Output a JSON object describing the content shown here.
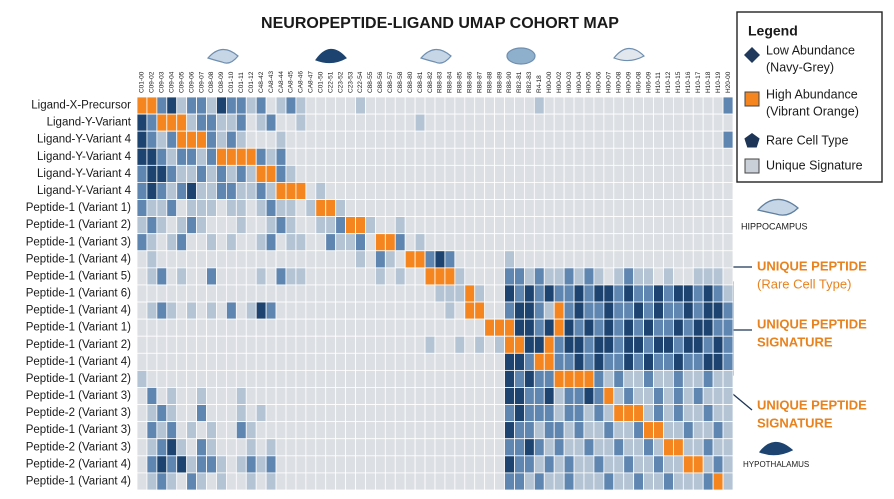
{
  "chart_data": {
    "type": "heatmap",
    "title": "NEUROPEPTIDE-LIGAND UMAP COHORT MAP",
    "rows": [
      "Ligand-X-Precursor",
      "Ligand-Y-Variant",
      "Ligand-Y-Variant 4",
      "Ligand-Y-Variant 4",
      "Ligand-Y-Variant 4",
      "Ligand-Y-Variant 4",
      "Peptide-1 (Variant 1)",
      "Peptide-1 (Variant 2)",
      "Peptide-1 (Variant 3)",
      "Peptide-1 (Variant 4)",
      "Peptide-1 (Variant 5)",
      "Peptide-1 (Variant 6)",
      "Peptide-1 (Variant 4)",
      "Peptide-1 (Variant 1)",
      "Peptide-1 (Variant 2)",
      "Peptide-1 (Variant 4)",
      "Peptide-1 (Variant 2)",
      "Peptide-1 (Variant 3)",
      "Peptide-2 (Variant 3)",
      "Peptide-1 (Variant 3)",
      "Peptide-2 (Variant 3)",
      "Peptide-2 (Variant 4)",
      "Peptide-1 (Variant 4)"
    ],
    "columns": [
      "C01-00",
      "C09-02",
      "C09-03",
      "C09-04",
      "C09-05",
      "C09-06",
      "C09-07",
      "C08-08",
      "C08-09",
      "C01-10",
      "C01-11",
      "C01-12",
      "C48-42",
      "CA8-43",
      "CA8-44",
      "CA8-45",
      "CA8-46",
      "CA8-47",
      "C01-50",
      "C22-51",
      "C23-52",
      "C23-53",
      "C22-54",
      "C88-55",
      "C88-56",
      "C88-57",
      "C88-58",
      "C88-80",
      "C88-81",
      "C88-82",
      "R88-83",
      "R88-84",
      "R88-85",
      "R88-86",
      "R88-87",
      "R88-88",
      "R88-89",
      "R88-90",
      "R82-81",
      "R82-83",
      "R4-18",
      "H00-00",
      "H00-02",
      "H00-03",
      "H00-04",
      "H00-05",
      "H00-06",
      "H00-07",
      "H00-08",
      "H00-09",
      "H06-08",
      "H06-09",
      "H10-11",
      "H10-12",
      "H10-15",
      "H10-16",
      "H10-17",
      "H10-18",
      "H10-19",
      "H20-00"
    ],
    "level_colors": [
      "#dcdfe3",
      "#b4c4d5",
      "#5f86b0",
      "#1d4470",
      "#f5861f"
    ],
    "matrix": [
      [
        4,
        4,
        2,
        3,
        1,
        2,
        2,
        1,
        3,
        2,
        2,
        1,
        2,
        0,
        1,
        2,
        1,
        0,
        0,
        0,
        0,
        0,
        1,
        0,
        0,
        0,
        0,
        0,
        0,
        0,
        0,
        0,
        0,
        0,
        0,
        0,
        0,
        0,
        0,
        0,
        1,
        0,
        0,
        0,
        0,
        0,
        0,
        0,
        0,
        0,
        0,
        0,
        0,
        0,
        0,
        0,
        0,
        0,
        0,
        2
      ],
      [
        3,
        2,
        4,
        4,
        4,
        1,
        2,
        2,
        1,
        1,
        2,
        0,
        1,
        2,
        0,
        0,
        1,
        0,
        0,
        0,
        0,
        0,
        0,
        0,
        0,
        0,
        0,
        0,
        1,
        0,
        0,
        0,
        0,
        0,
        0,
        0,
        0,
        0,
        0,
        0,
        0,
        0,
        0,
        0,
        0,
        0,
        0,
        0,
        0,
        0,
        0,
        0,
        0,
        0,
        0,
        0,
        0,
        0,
        0,
        0
      ],
      [
        3,
        2,
        1,
        2,
        4,
        4,
        4,
        2,
        1,
        2,
        1,
        0,
        0,
        0,
        1,
        0,
        0,
        0,
        0,
        0,
        0,
        0,
        0,
        0,
        0,
        0,
        0,
        0,
        0,
        0,
        0,
        0,
        0,
        0,
        0,
        0,
        0,
        0,
        0,
        0,
        0,
        0,
        0,
        0,
        0,
        0,
        0,
        0,
        0,
        0,
        0,
        0,
        0,
        0,
        0,
        0,
        0,
        0,
        0,
        2
      ],
      [
        3,
        3,
        2,
        1,
        2,
        2,
        1,
        2,
        4,
        4,
        4,
        4,
        2,
        1,
        2,
        0,
        0,
        0,
        0,
        0,
        0,
        0,
        0,
        0,
        0,
        0,
        0,
        0,
        0,
        0,
        0,
        0,
        0,
        0,
        0,
        0,
        0,
        0,
        0,
        0,
        0,
        0,
        0,
        0,
        0,
        0,
        0,
        0,
        0,
        0,
        0,
        0,
        0,
        0,
        0,
        0,
        0,
        0,
        0,
        0
      ],
      [
        2,
        3,
        3,
        2,
        1,
        1,
        2,
        1,
        2,
        1,
        2,
        1,
        4,
        4,
        2,
        1,
        0,
        0,
        0,
        0,
        0,
        0,
        0,
        0,
        0,
        0,
        0,
        0,
        0,
        0,
        0,
        0,
        0,
        0,
        0,
        0,
        0,
        0,
        0,
        0,
        0,
        0,
        0,
        0,
        0,
        0,
        0,
        0,
        0,
        0,
        0,
        0,
        0,
        0,
        0,
        0,
        0,
        0,
        0,
        0
      ],
      [
        2,
        3,
        2,
        1,
        2,
        3,
        1,
        1,
        2,
        2,
        1,
        1,
        2,
        1,
        4,
        4,
        4,
        0,
        1,
        0,
        0,
        0,
        0,
        0,
        0,
        0,
        0,
        0,
        0,
        0,
        0,
        0,
        0,
        0,
        0,
        0,
        0,
        0,
        0,
        0,
        0,
        0,
        0,
        0,
        0,
        0,
        0,
        0,
        0,
        0,
        0,
        0,
        0,
        0,
        0,
        0,
        0,
        0,
        0,
        0
      ],
      [
        2,
        1,
        1,
        2,
        0,
        1,
        1,
        1,
        0,
        1,
        1,
        0,
        1,
        2,
        1,
        1,
        0,
        1,
        4,
        4,
        1,
        0,
        0,
        0,
        0,
        0,
        0,
        0,
        0,
        0,
        0,
        0,
        0,
        0,
        0,
        0,
        0,
        0,
        0,
        0,
        0,
        0,
        0,
        0,
        0,
        0,
        0,
        0,
        0,
        0,
        0,
        0,
        0,
        0,
        0,
        0,
        0,
        0,
        0,
        0
      ],
      [
        1,
        2,
        1,
        0,
        1,
        2,
        1,
        0,
        0,
        0,
        1,
        0,
        0,
        1,
        2,
        1,
        0,
        0,
        1,
        1,
        2,
        4,
        4,
        1,
        0,
        0,
        1,
        0,
        0,
        0,
        0,
        0,
        0,
        0,
        0,
        0,
        0,
        0,
        0,
        0,
        0,
        0,
        0,
        0,
        0,
        0,
        0,
        0,
        0,
        0,
        0,
        0,
        0,
        0,
        0,
        0,
        0,
        0,
        0,
        0
      ],
      [
        2,
        1,
        0,
        1,
        2,
        0,
        0,
        1,
        0,
        1,
        0,
        0,
        1,
        2,
        0,
        1,
        1,
        0,
        0,
        2,
        1,
        1,
        2,
        0,
        4,
        4,
        2,
        0,
        1,
        0,
        0,
        0,
        0,
        0,
        0,
        0,
        0,
        0,
        0,
        0,
        0,
        0,
        0,
        0,
        0,
        0,
        0,
        0,
        0,
        0,
        0,
        0,
        0,
        0,
        0,
        0,
        0,
        0,
        0,
        0
      ],
      [
        0,
        1,
        0,
        0,
        0,
        0,
        0,
        0,
        0,
        0,
        0,
        0,
        0,
        0,
        0,
        0,
        0,
        0,
        0,
        0,
        0,
        0,
        1,
        0,
        2,
        1,
        0,
        4,
        4,
        2,
        3,
        2,
        0,
        0,
        0,
        0,
        0,
        1,
        0,
        0,
        0,
        0,
        0,
        0,
        0,
        0,
        0,
        0,
        0,
        0,
        0,
        0,
        0,
        0,
        0,
        0,
        0,
        0,
        0,
        0
      ],
      [
        0,
        1,
        2,
        0,
        1,
        0,
        0,
        2,
        0,
        0,
        0,
        0,
        1,
        0,
        2,
        1,
        1,
        0,
        0,
        0,
        0,
        0,
        0,
        0,
        1,
        0,
        1,
        0,
        0,
        4,
        4,
        4,
        1,
        0,
        0,
        0,
        0,
        2,
        2,
        1,
        2,
        1,
        1,
        2,
        1,
        2,
        1,
        0,
        1,
        2,
        1,
        1,
        0,
        1,
        0,
        0,
        1,
        1,
        1,
        0
      ],
      [
        0,
        0,
        0,
        0,
        0,
        0,
        0,
        0,
        0,
        0,
        0,
        0,
        0,
        0,
        0,
        0,
        0,
        0,
        0,
        0,
        0,
        0,
        0,
        0,
        0,
        0,
        0,
        0,
        0,
        0,
        1,
        1,
        1,
        4,
        1,
        0,
        0,
        3,
        2,
        3,
        2,
        3,
        2,
        2,
        3,
        2,
        3,
        3,
        2,
        3,
        2,
        2,
        3,
        2,
        3,
        3,
        2,
        3,
        2,
        1
      ],
      [
        0,
        1,
        2,
        1,
        0,
        1,
        0,
        1,
        0,
        2,
        0,
        1,
        3,
        2,
        0,
        0,
        0,
        0,
        0,
        0,
        0,
        0,
        0,
        0,
        0,
        0,
        0,
        0,
        0,
        0,
        0,
        1,
        0,
        4,
        4,
        0,
        0,
        2,
        3,
        3,
        2,
        1,
        4,
        2,
        3,
        2,
        2,
        3,
        2,
        2,
        3,
        2,
        3,
        2,
        2,
        3,
        2,
        3,
        3,
        2
      ],
      [
        0,
        0,
        0,
        0,
        0,
        0,
        0,
        0,
        0,
        0,
        0,
        0,
        0,
        0,
        0,
        0,
        0,
        0,
        0,
        0,
        0,
        0,
        0,
        0,
        0,
        0,
        0,
        0,
        0,
        0,
        0,
        0,
        0,
        0,
        0,
        4,
        4,
        4,
        3,
        3,
        2,
        3,
        4,
        3,
        2,
        3,
        2,
        3,
        2,
        3,
        2,
        3,
        2,
        2,
        3,
        2,
        3,
        3,
        2,
        2
      ],
      [
        0,
        0,
        0,
        0,
        0,
        0,
        0,
        0,
        0,
        0,
        0,
        0,
        0,
        0,
        0,
        0,
        0,
        0,
        0,
        0,
        0,
        0,
        0,
        0,
        0,
        0,
        0,
        0,
        0,
        1,
        0,
        0,
        1,
        0,
        1,
        0,
        1,
        4,
        4,
        3,
        3,
        4,
        2,
        3,
        3,
        2,
        3,
        3,
        2,
        3,
        3,
        2,
        3,
        3,
        2,
        3,
        3,
        2,
        3,
        2
      ],
      [
        0,
        0,
        0,
        0,
        0,
        0,
        0,
        0,
        0,
        0,
        0,
        0,
        0,
        0,
        0,
        0,
        0,
        0,
        0,
        0,
        0,
        0,
        0,
        0,
        0,
        0,
        0,
        0,
        0,
        0,
        0,
        0,
        0,
        0,
        0,
        0,
        0,
        3,
        3,
        2,
        4,
        4,
        2,
        2,
        3,
        2,
        3,
        2,
        2,
        3,
        2,
        3,
        2,
        2,
        3,
        2,
        2,
        3,
        3,
        2
      ],
      [
        1,
        0,
        0,
        0,
        0,
        0,
        0,
        0,
        0,
        0,
        0,
        0,
        0,
        0,
        0,
        0,
        0,
        0,
        0,
        0,
        0,
        0,
        0,
        0,
        0,
        0,
        0,
        0,
        0,
        0,
        0,
        0,
        0,
        0,
        0,
        0,
        0,
        3,
        2,
        3,
        2,
        2,
        4,
        4,
        4,
        4,
        2,
        1,
        2,
        1,
        1,
        2,
        1,
        1,
        2,
        1,
        1,
        2,
        1,
        1
      ],
      [
        0,
        2,
        0,
        1,
        0,
        0,
        1,
        0,
        0,
        0,
        1,
        0,
        0,
        0,
        0,
        0,
        0,
        0,
        0,
        0,
        0,
        0,
        0,
        0,
        0,
        0,
        0,
        0,
        0,
        0,
        0,
        0,
        0,
        0,
        0,
        0,
        0,
        3,
        3,
        2,
        2,
        3,
        1,
        2,
        2,
        3,
        2,
        4,
        1,
        2,
        1,
        1,
        2,
        1,
        2,
        1,
        2,
        1,
        1,
        1
      ],
      [
        0,
        1,
        2,
        1,
        0,
        0,
        2,
        0,
        0,
        0,
        1,
        0,
        1,
        0,
        0,
        0,
        0,
        0,
        0,
        0,
        0,
        0,
        0,
        0,
        0,
        0,
        0,
        0,
        0,
        0,
        0,
        0,
        0,
        0,
        0,
        0,
        0,
        2,
        3,
        2,
        2,
        2,
        1,
        2,
        2,
        1,
        2,
        1,
        4,
        4,
        4,
        1,
        2,
        1,
        2,
        1,
        1,
        2,
        1,
        1
      ],
      [
        0,
        2,
        1,
        2,
        0,
        1,
        0,
        1,
        0,
        0,
        2,
        1,
        0,
        0,
        0,
        0,
        0,
        0,
        0,
        0,
        0,
        0,
        0,
        0,
        0,
        0,
        0,
        0,
        0,
        0,
        0,
        0,
        0,
        0,
        0,
        0,
        0,
        3,
        2,
        2,
        1,
        2,
        2,
        1,
        2,
        1,
        1,
        2,
        1,
        1,
        2,
        4,
        4,
        1,
        1,
        2,
        1,
        1,
        2,
        1
      ],
      [
        0,
        1,
        2,
        3,
        1,
        0,
        2,
        1,
        0,
        0,
        0,
        1,
        0,
        1,
        0,
        0,
        0,
        0,
        0,
        0,
        0,
        0,
        0,
        0,
        0,
        0,
        0,
        0,
        0,
        0,
        0,
        0,
        0,
        0,
        0,
        0,
        0,
        2,
        2,
        3,
        2,
        1,
        2,
        1,
        1,
        2,
        1,
        1,
        2,
        1,
        1,
        2,
        1,
        4,
        4,
        1,
        1,
        2,
        1,
        1
      ],
      [
        0,
        2,
        3,
        2,
        3,
        1,
        2,
        2,
        1,
        0,
        1,
        2,
        1,
        2,
        0,
        0,
        0,
        0,
        0,
        0,
        0,
        0,
        0,
        0,
        0,
        0,
        0,
        0,
        0,
        0,
        0,
        0,
        0,
        0,
        0,
        0,
        0,
        3,
        2,
        2,
        1,
        2,
        1,
        2,
        1,
        1,
        2,
        1,
        1,
        2,
        1,
        1,
        2,
        1,
        1,
        4,
        4,
        1,
        2,
        1
      ],
      [
        0,
        1,
        2,
        1,
        0,
        2,
        1,
        0,
        1,
        0,
        0,
        1,
        0,
        1,
        0,
        0,
        0,
        0,
        0,
        0,
        0,
        0,
        0,
        0,
        0,
        0,
        0,
        0,
        0,
        0,
        0,
        0,
        0,
        0,
        0,
        0,
        0,
        2,
        2,
        1,
        2,
        1,
        1,
        2,
        1,
        1,
        1,
        2,
        1,
        1,
        2,
        1,
        1,
        2,
        1,
        1,
        1,
        2,
        4,
        1
      ]
    ],
    "legend": {
      "title": "Legend",
      "items": [
        {
          "label": "Low Abundance",
          "note": "(Navy-Grey)",
          "shape": "diamond",
          "color": "#1f3a5c"
        },
        {
          "label": "High Abundance",
          "note": "(Vibrant Orange)",
          "shape": "square",
          "color": "#f5861f"
        },
        {
          "label": "Rare Cell Type",
          "shape": "pentagon",
          "color": "#1d3557"
        },
        {
          "label": "Unique Signature",
          "shape": "square",
          "color": "#c9d0d8"
        }
      ]
    },
    "annotations": [
      "HIPPOCAMPUS",
      "UNIQUE PEPTIDE",
      "(Rare Cell Type)",
      "UNIQUE PEPTIDE",
      "SIGNATURE",
      "UNIQUE PEPTIDE",
      "SIGNATURE",
      "HYPOTHALAMUS"
    ]
  }
}
